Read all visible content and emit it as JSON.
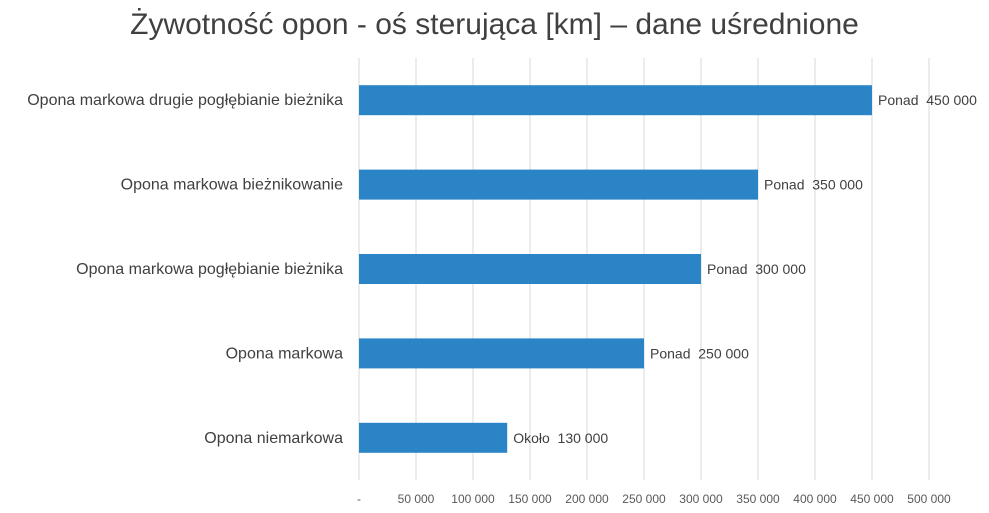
{
  "chart_data": {
    "type": "bar",
    "orientation": "horizontal",
    "title": "Żywotność opon - oś sterująca [km] – dane uśrednione",
    "xlabel": "",
    "ylabel": "",
    "categories": [
      "Opona markowa drugie pogłębianie bieżnika",
      "Opona markowa bieżnikowanie",
      "Opona markowa pogłębianie bieżnika",
      "Opona markowa",
      "Opona niemarkowa"
    ],
    "values": [
      450000,
      350000,
      300000,
      250000,
      130000
    ],
    "data_labels": [
      "Ponad  450 000",
      "Ponad  350 000",
      "Ponad  300 000",
      "Ponad  250 000",
      "Około  130 000"
    ],
    "xlim": [
      0,
      500000
    ],
    "x_ticks": [
      0,
      50000,
      100000,
      150000,
      200000,
      250000,
      300000,
      350000,
      400000,
      450000,
      500000
    ],
    "x_tick_labels": [
      "-",
      "50 000",
      "100 000",
      "150 000",
      "200 000",
      "250 000",
      "300 000",
      "350 000",
      "400 000",
      "450 000",
      "500 000"
    ],
    "grid": true,
    "legend": "none",
    "bar_color": "#2a84c6"
  }
}
